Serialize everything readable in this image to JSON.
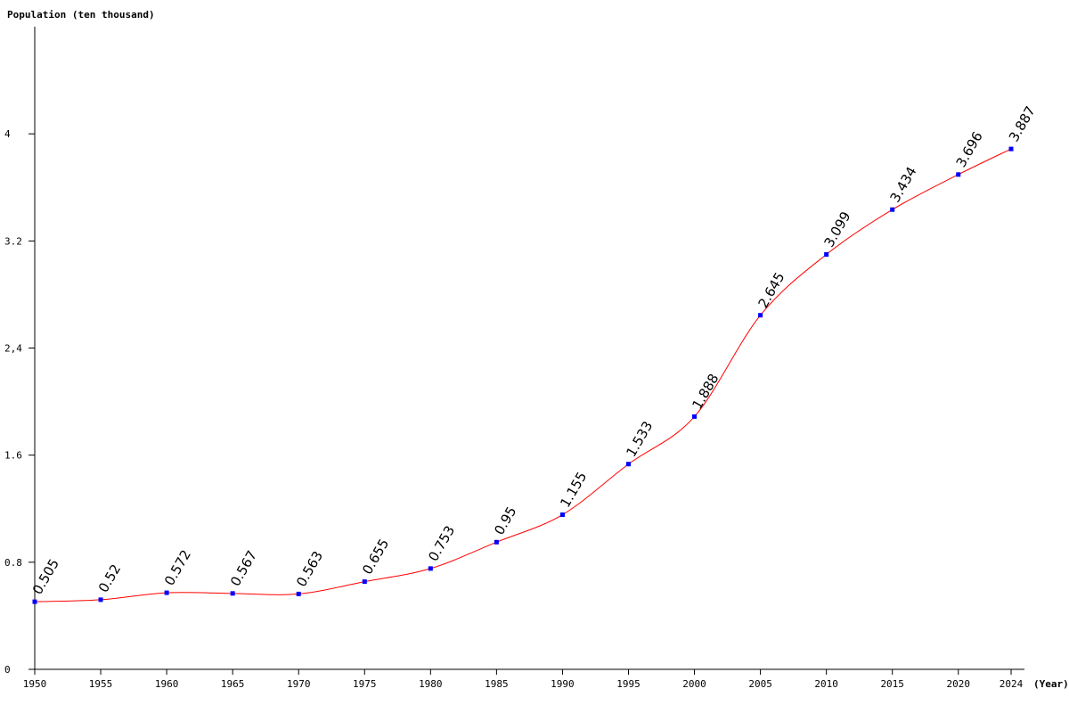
{
  "chart_data": {
    "type": "line",
    "ylabel": "Population (ten thousand)",
    "xlabel": "(Year)",
    "x": [
      1950,
      1955,
      1960,
      1965,
      1970,
      1975,
      1980,
      1985,
      1990,
      1995,
      2000,
      2005,
      2010,
      2015,
      2020,
      2024
    ],
    "series": [
      {
        "values": [
          0.505,
          0.52,
          0.572,
          0.567,
          0.563,
          0.655,
          0.753,
          0.95,
          1.155,
          1.533,
          1.888,
          2.645,
          3.099,
          3.434,
          3.696,
          3.887
        ],
        "labels": [
          "0.505",
          "0.52",
          "0.572",
          "0.567",
          "0.563",
          "0.655",
          "0.753",
          "0.95",
          "1.155",
          "1.533",
          "1.888",
          "2.645",
          "3.099",
          "3.434",
          "3.696",
          "3.887"
        ]
      }
    ],
    "x_ticks": [
      "1950",
      "1955",
      "1960",
      "1965",
      "1970",
      "1975",
      "1980",
      "1985",
      "1990",
      "1995",
      "2000",
      "2005",
      "2010",
      "2015",
      "2020",
      "2024"
    ],
    "y_ticks": [
      {
        "value": 0,
        "label": "0"
      },
      {
        "value": 0.8,
        "label": "0.8"
      },
      {
        "value": 1.6,
        "label": "1.6"
      },
      {
        "value": 2.4,
        "label": "2,4"
      },
      {
        "value": 3.2,
        "label": "3.2"
      },
      {
        "value": 4,
        "label": "4"
      }
    ],
    "xlim": [
      1950,
      2024
    ],
    "ylim": [
      0,
      4.8
    ],
    "grid": false,
    "line_color": "#ff0000",
    "marker_color": "#0000ff",
    "axis_color": "#000000"
  }
}
